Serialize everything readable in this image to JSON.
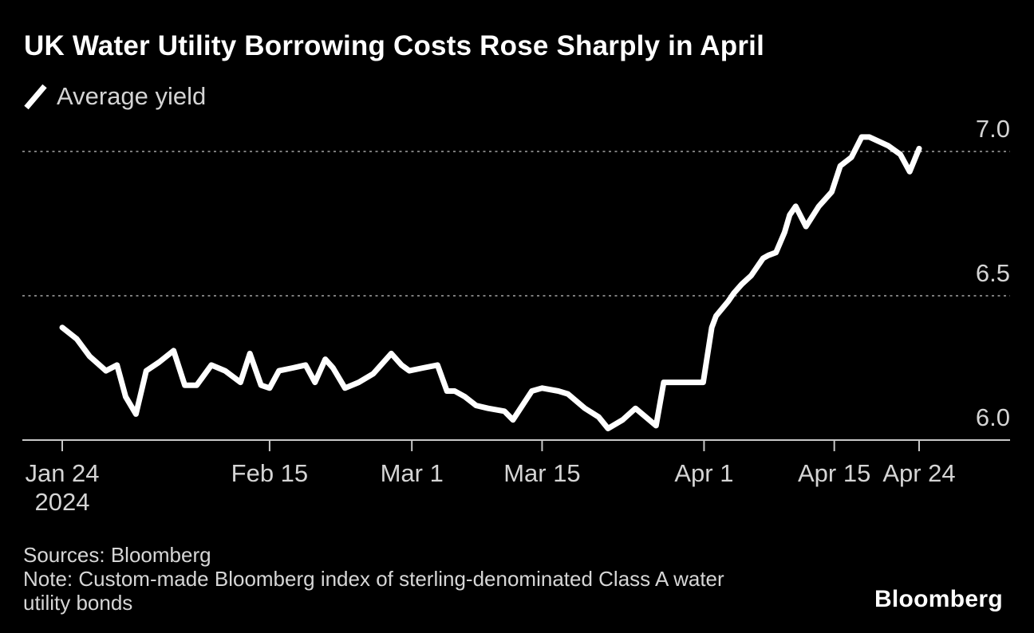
{
  "header": {
    "title": "UK Water Utility Borrowing Costs Rose Sharply in April"
  },
  "legend": {
    "label": "Average yield"
  },
  "footer": {
    "sources": "Sources: Bloomberg",
    "note_lines": [
      "Note: Custom-made Bloomberg index of sterling-denominated Class A water",
      "utility bonds"
    ],
    "logo": "Bloomberg"
  },
  "colors": {
    "background": "#000000",
    "line": "#ffffff",
    "title": "#ffffff",
    "axis_label": "#d4d4d4",
    "gridline": "#7c7c7c",
    "axis_line": "#c8c8c8",
    "footer_text": "#d6d6d6",
    "logo": "#ffffff"
  },
  "chart_data": {
    "type": "line",
    "title": "UK Water Utility Borrowing Costs Rose Sharply in April",
    "ylabel": "",
    "xlabel": "",
    "ylim": [
      6.0,
      7.1
    ],
    "grid": "horizontal dotted at 6.5 and 7.0, solid baseline at 6.0",
    "legend_position": "top-left",
    "y_ticks": [
      {
        "value": 6.0,
        "label": "6.0",
        "baseline": true
      },
      {
        "value": 6.5,
        "label": "6.5",
        "baseline": false
      },
      {
        "value": 7.0,
        "label": "7.0",
        "baseline": false
      }
    ],
    "x_ticks": [
      {
        "label": "Jan 24",
        "sublabel": "2024",
        "t": 0.0
      },
      {
        "label": "Feb 15",
        "sublabel": "",
        "t": 0.242
      },
      {
        "label": "Mar 1",
        "sublabel": "",
        "t": 0.408
      },
      {
        "label": "Mar 15",
        "sublabel": "",
        "t": 0.56
      },
      {
        "label": "Apr 1",
        "sublabel": "",
        "t": 0.749
      },
      {
        "label": "Apr 15",
        "sublabel": "",
        "t": 0.901
      },
      {
        "label": "Apr 24",
        "sublabel": "",
        "t": 1.0
      }
    ],
    "series": [
      {
        "name": "Average yield",
        "points": [
          [
            0.0,
            6.39
          ],
          [
            0.017,
            6.35
          ],
          [
            0.032,
            6.29
          ],
          [
            0.051,
            6.24
          ],
          [
            0.064,
            6.26
          ],
          [
            0.074,
            6.15
          ],
          [
            0.086,
            6.09
          ],
          [
            0.098,
            6.24
          ],
          [
            0.113,
            6.27
          ],
          [
            0.13,
            6.31
          ],
          [
            0.143,
            6.19
          ],
          [
            0.157,
            6.19
          ],
          [
            0.174,
            6.26
          ],
          [
            0.19,
            6.24
          ],
          [
            0.208,
            6.2
          ],
          [
            0.219,
            6.3
          ],
          [
            0.232,
            6.19
          ],
          [
            0.242,
            6.18
          ],
          [
            0.253,
            6.24
          ],
          [
            0.269,
            6.25
          ],
          [
            0.284,
            6.26
          ],
          [
            0.295,
            6.2
          ],
          [
            0.307,
            6.28
          ],
          [
            0.316,
            6.25
          ],
          [
            0.33,
            6.18
          ],
          [
            0.346,
            6.2
          ],
          [
            0.363,
            6.23
          ],
          [
            0.372,
            6.26
          ],
          [
            0.384,
            6.3
          ],
          [
            0.396,
            6.26
          ],
          [
            0.405,
            6.24
          ],
          [
            0.421,
            6.25
          ],
          [
            0.438,
            6.26
          ],
          [
            0.449,
            6.17
          ],
          [
            0.458,
            6.17
          ],
          [
            0.47,
            6.15
          ],
          [
            0.483,
            6.12
          ],
          [
            0.497,
            6.11
          ],
          [
            0.516,
            6.1
          ],
          [
            0.526,
            6.07
          ],
          [
            0.548,
            6.17
          ],
          [
            0.56,
            6.18
          ],
          [
            0.579,
            6.17
          ],
          [
            0.59,
            6.16
          ],
          [
            0.61,
            6.11
          ],
          [
            0.626,
            6.08
          ],
          [
            0.637,
            6.04
          ],
          [
            0.654,
            6.07
          ],
          [
            0.669,
            6.11
          ],
          [
            0.689,
            6.06
          ],
          [
            0.693,
            6.05
          ],
          [
            0.702,
            6.2
          ],
          [
            0.719,
            6.2
          ],
          [
            0.734,
            6.2
          ],
          [
            0.748,
            6.2
          ],
          [
            0.758,
            6.39
          ],
          [
            0.763,
            6.43
          ],
          [
            0.777,
            6.48
          ],
          [
            0.784,
            6.51
          ],
          [
            0.793,
            6.54
          ],
          [
            0.804,
            6.57
          ],
          [
            0.818,
            6.63
          ],
          [
            0.824,
            6.64
          ],
          [
            0.833,
            6.65
          ],
          [
            0.843,
            6.72
          ],
          [
            0.849,
            6.78
          ],
          [
            0.856,
            6.81
          ],
          [
            0.868,
            6.74
          ],
          [
            0.883,
            6.81
          ],
          [
            0.898,
            6.86
          ],
          [
            0.908,
            6.95
          ],
          [
            0.921,
            6.98
          ],
          [
            0.933,
            7.05
          ],
          [
            0.942,
            7.05
          ],
          [
            0.964,
            7.02
          ],
          [
            0.978,
            6.99
          ],
          [
            0.989,
            6.93
          ],
          [
            1.0,
            7.01
          ]
        ]
      }
    ]
  }
}
